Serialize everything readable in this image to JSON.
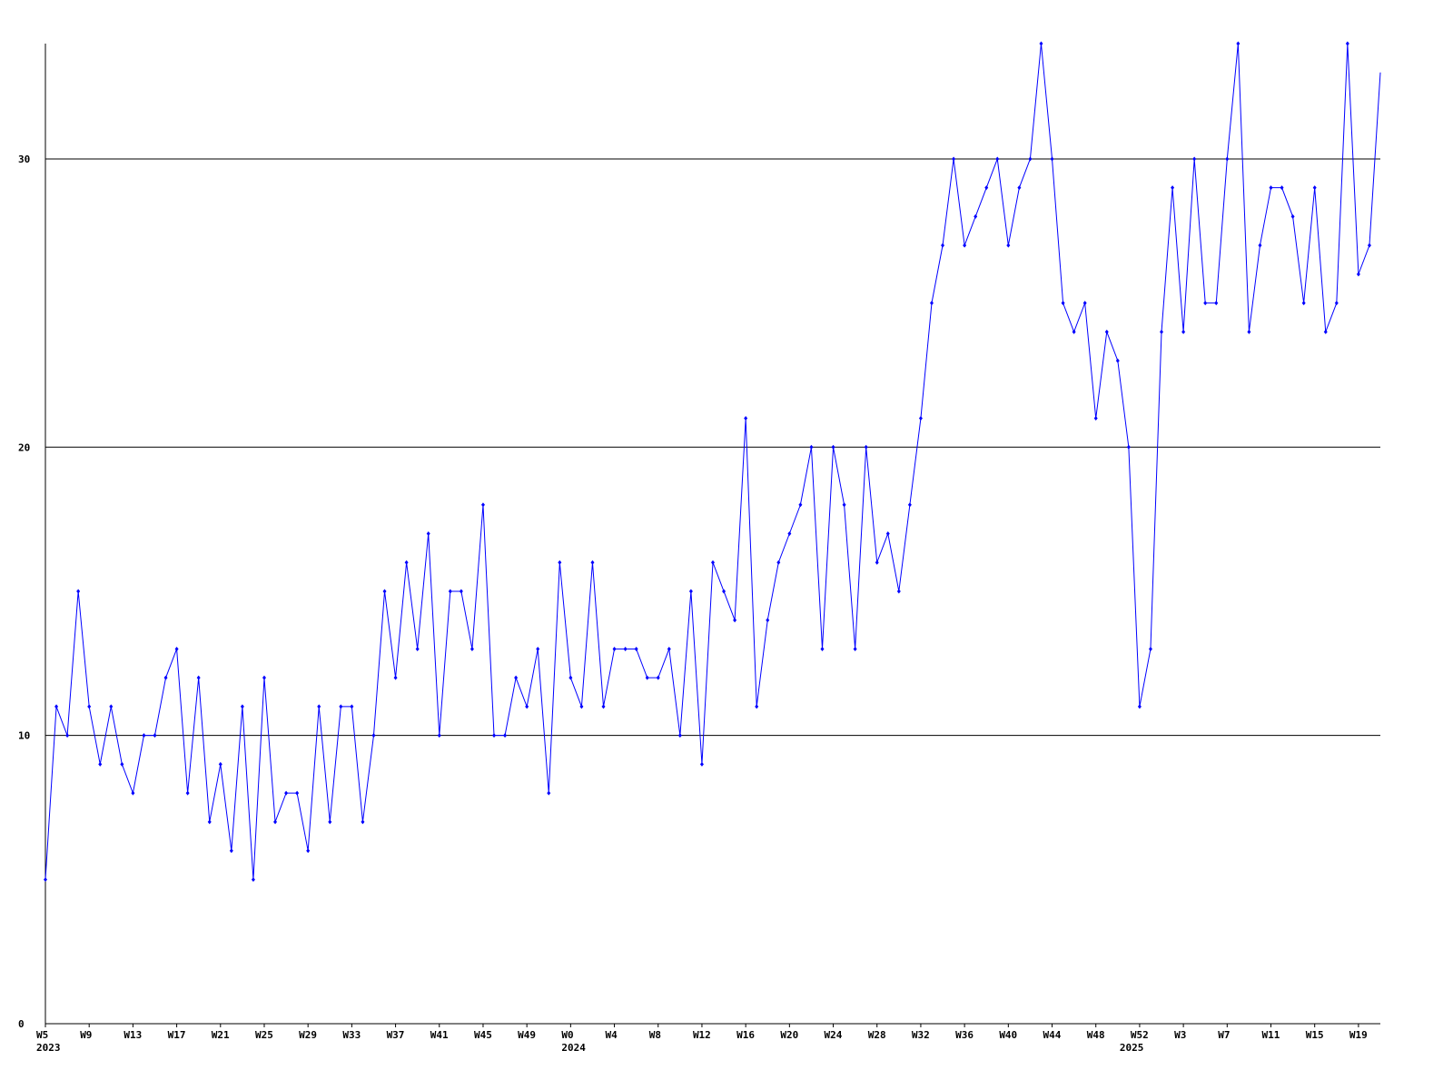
{
  "chart_data": {
    "type": "line",
    "categories": [
      "W5",
      null,
      null,
      null,
      "W9",
      null,
      null,
      null,
      "W13",
      null,
      null,
      null,
      "W17",
      null,
      null,
      null,
      "W21",
      null,
      null,
      null,
      "W25",
      null,
      null,
      null,
      "W29",
      null,
      null,
      null,
      "W33",
      null,
      null,
      null,
      "W37",
      null,
      null,
      null,
      "W41",
      null,
      null,
      null,
      "W45",
      null,
      null,
      null,
      "W49",
      null,
      null,
      null,
      "W0",
      null,
      null,
      null,
      "W4",
      null,
      null,
      null,
      "W8",
      null,
      null,
      null,
      "W12",
      null,
      null,
      null,
      "W16",
      null,
      null,
      null,
      "W20",
      null,
      null,
      null,
      "W24",
      null,
      null,
      null,
      "W28",
      null,
      null,
      null,
      "W32",
      null,
      null,
      null,
      "W36",
      null,
      null,
      null,
      "W40",
      null,
      null,
      null,
      "W44",
      null,
      null,
      null,
      "W48",
      null,
      null,
      null,
      "W52",
      null,
      null,
      null,
      "W3",
      null,
      null,
      null,
      "W7",
      null,
      null,
      null,
      "W11",
      null,
      null,
      null,
      "W15",
      null,
      null,
      null,
      "W19",
      null,
      null
    ],
    "years": [
      "2023",
      null,
      null,
      null,
      null,
      null,
      null,
      null,
      null,
      null,
      null,
      null,
      null,
      null,
      null,
      null,
      null,
      null,
      null,
      null,
      null,
      null,
      null,
      null,
      null,
      null,
      null,
      null,
      null,
      null,
      null,
      null,
      null,
      null,
      null,
      null,
      null,
      null,
      null,
      null,
      null,
      null,
      null,
      null,
      null,
      null,
      null,
      null,
      "2024",
      null,
      null,
      null,
      null,
      null,
      null,
      null,
      null,
      null,
      null,
      null,
      null,
      null,
      null,
      null,
      null,
      null,
      null,
      null,
      null,
      null,
      null,
      null,
      null,
      null,
      null,
      null,
      null,
      null,
      null,
      null,
      null,
      null,
      null,
      null,
      null,
      null,
      null,
      null,
      null,
      null,
      null,
      null,
      null,
      null,
      null,
      null,
      null,
      null,
      null,
      "2025",
      null,
      null,
      null,
      null,
      null,
      null,
      null,
      null,
      null,
      null,
      null,
      null,
      null,
      null,
      null,
      null,
      null,
      null,
      null,
      null,
      null
    ],
    "series": [
      {
        "color": "#0000ff",
        "values": [
          5,
          11,
          10,
          15,
          11,
          9,
          11,
          9,
          8,
          10,
          10,
          12,
          13,
          8,
          12,
          7,
          9,
          6,
          11,
          5,
          12,
          7,
          8,
          8,
          6,
          11,
          7,
          11,
          11,
          7,
          10,
          15,
          12,
          16,
          13,
          17,
          10,
          15,
          15,
          13,
          18,
          10,
          10,
          12,
          11,
          13,
          8,
          16,
          12,
          11,
          16,
          11,
          13,
          13,
          13,
          12,
          12,
          13,
          10,
          15,
          9,
          16,
          15,
          14,
          21,
          11,
          14,
          16,
          17,
          18,
          20,
          13,
          20,
          18,
          13,
          20,
          16,
          17,
          15,
          18,
          21,
          25,
          27,
          30,
          27,
          28,
          29,
          30,
          27,
          29,
          30,
          34,
          30,
          25,
          24,
          25,
          21,
          24,
          23,
          20,
          11,
          13,
          24,
          29,
          24,
          30,
          25,
          25,
          30,
          34,
          24,
          27,
          29,
          29,
          28,
          25,
          29,
          24,
          25,
          34,
          26,
          27,
          33
        ]
      }
    ],
    "ylim": [
      0,
      34
    ],
    "yticks": [
      0,
      10,
      20,
      30
    ],
    "grid": true
  }
}
